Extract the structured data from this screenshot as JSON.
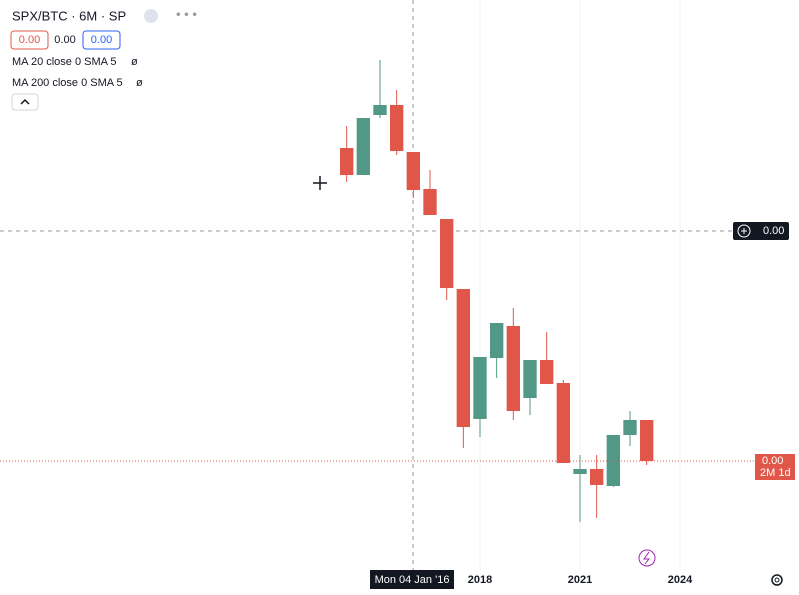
{
  "legend": {
    "title": "SPX/BTC · 6M · SP",
    "values": [
      "0.00",
      "0.00",
      "0.00"
    ],
    "indicators": [
      {
        "label": "MA 20 close 0 SMA 5",
        "value": "ø"
      },
      {
        "label": "MA 200 close 0 SMA 5",
        "value": "ø"
      }
    ]
  },
  "crosshair": {
    "time_label": "Mon 04 Jan '16",
    "price_label": "0.00"
  },
  "last_price": {
    "price": "0.00",
    "countdown": "2M 1d"
  },
  "chart_data": {
    "type": "candlestick",
    "x": [
      2014,
      2014.5,
      2015,
      2015.5,
      2016,
      2016.5,
      2017,
      2017.5,
      2018,
      2018.5,
      2019,
      2019.5,
      2020,
      2020.5,
      2021,
      2021.5,
      2022,
      2022.5,
      2023
    ],
    "open": [
      412,
      385,
      445,
      455,
      408,
      371,
      341,
      271,
      141,
      202,
      234,
      162,
      200,
      177,
      86,
      91,
      74,
      125,
      140
    ],
    "high": [
      434,
      442,
      500,
      470,
      408,
      390,
      341,
      271,
      203,
      237,
      252,
      200,
      228,
      180,
      105,
      105,
      125,
      149,
      140
    ],
    "low": [
      378,
      385,
      442,
      405,
      362,
      345,
      260,
      112,
      123,
      182,
      140,
      145,
      176,
      97,
      38,
      42,
      73,
      114,
      95
    ],
    "close": [
      385,
      442,
      455,
      409,
      370,
      345,
      272,
      133,
      203,
      237,
      149,
      200,
      176,
      97,
      91,
      75,
      125,
      140,
      99
    ],
    "up_color": "#529886",
    "down_color": "#e0574a",
    "xlim": [
      2003.84,
      2026.25
    ],
    "xticks": [
      2018,
      2021,
      2024
    ],
    "ylim": [
      0,
      560
    ]
  }
}
